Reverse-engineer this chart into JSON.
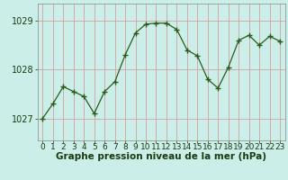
{
  "x": [
    0,
    1,
    2,
    3,
    4,
    5,
    6,
    7,
    8,
    9,
    10,
    11,
    12,
    13,
    14,
    15,
    16,
    17,
    18,
    19,
    20,
    21,
    22,
    23
  ],
  "y": [
    1027.0,
    1027.3,
    1027.65,
    1027.55,
    1027.45,
    1027.1,
    1027.55,
    1027.75,
    1028.3,
    1028.75,
    1028.93,
    1028.95,
    1028.95,
    1028.82,
    1028.4,
    1028.28,
    1027.8,
    1027.62,
    1028.05,
    1028.6,
    1028.7,
    1028.5,
    1028.68,
    1028.58
  ],
  "line_color": "#2d5a1b",
  "marker_color": "#2d5a1b",
  "bg_color": "#cceee8",
  "grid_color": "#d4a0a0",
  "xlabel": "Graphe pression niveau de la mer (hPa)",
  "xlabel_color": "#1a3a10",
  "ytick_labels": [
    "1027",
    "1028",
    "1029"
  ],
  "ytick_values": [
    1027,
    1028,
    1029
  ],
  "ylim": [
    1026.55,
    1029.35
  ],
  "xlim": [
    -0.5,
    23.5
  ],
  "xtick_labels": [
    "0",
    "1",
    "2",
    "3",
    "4",
    "5",
    "6",
    "7",
    "8",
    "9",
    "10",
    "11",
    "12",
    "13",
    "14",
    "15",
    "16",
    "17",
    "18",
    "19",
    "20",
    "21",
    "22",
    "23"
  ],
  "tick_fontsize": 6.5,
  "label_fontsize": 7.5
}
